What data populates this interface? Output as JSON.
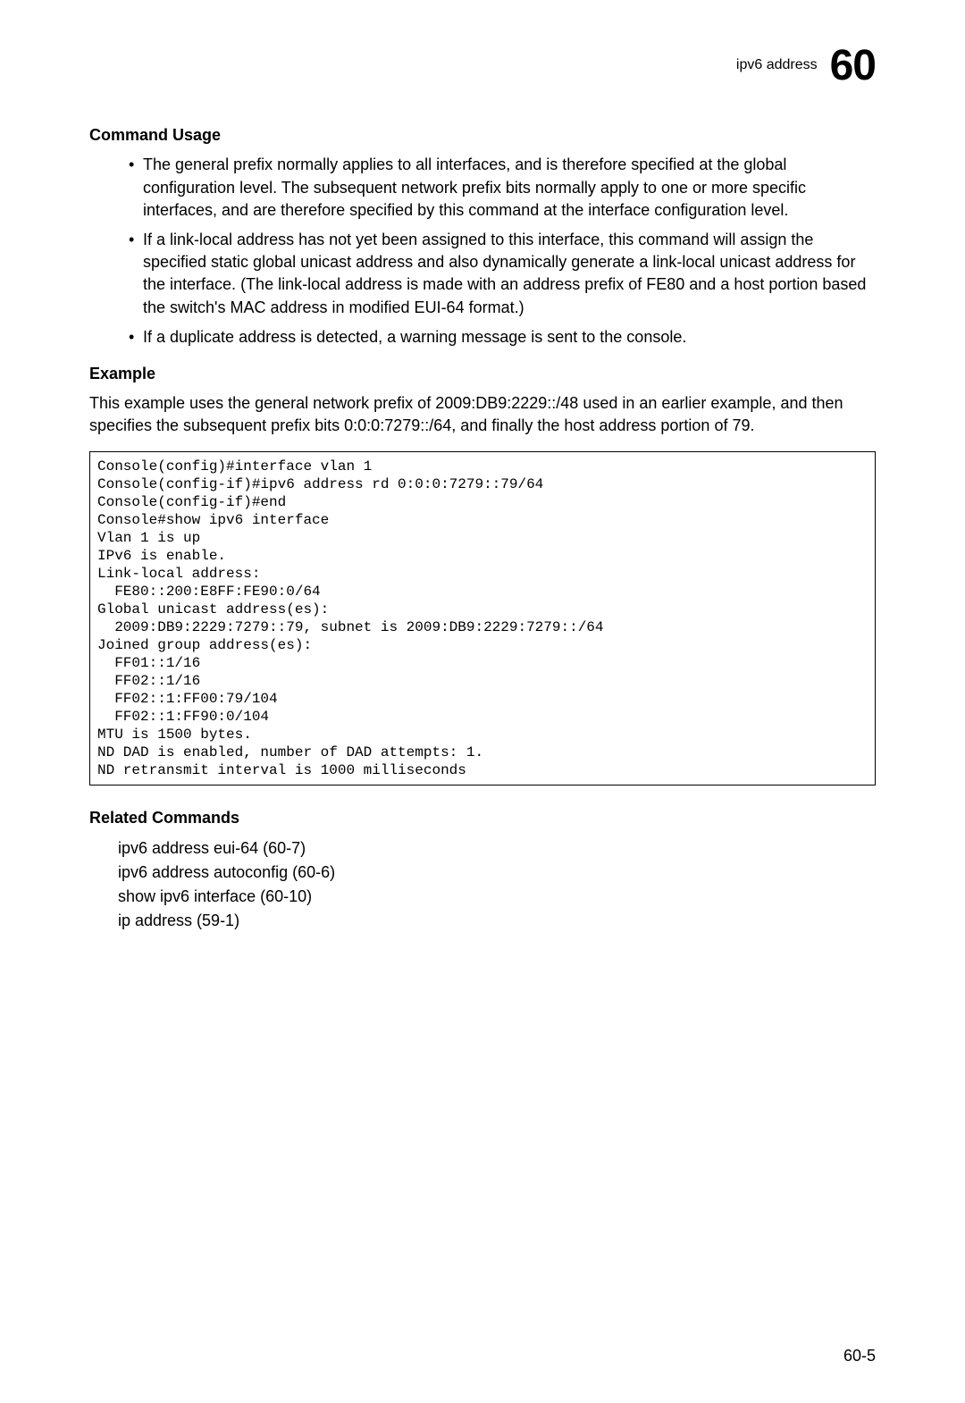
{
  "header": {
    "label": "ipv6 address",
    "chapter": "60"
  },
  "sections": {
    "command_usage": {
      "heading": "Command Usage",
      "bullets": [
        "The general prefix normally applies to all interfaces, and is therefore specified at the global configuration level. The subsequent network prefix bits normally apply to one or more specific interfaces, and are therefore specified by this command at the interface configuration level.",
        "If a link-local address has not yet been assigned to this interface, this command will assign the specified static global unicast address and also dynamically generate a link-local unicast address for the interface. (The link-local address is made with an address prefix of FE80 and a host portion based the switch's MAC address in modified EUI-64 format.)",
        "If a duplicate address is detected, a warning message is sent to the console."
      ]
    },
    "example": {
      "heading": "Example",
      "intro": "This example uses the general network prefix of 2009:DB9:2229::/48 used in an earlier example, and then specifies the subsequent prefix bits 0:0:0:7279::/64, and finally the host address portion of 79.",
      "code": "Console(config)#interface vlan 1\nConsole(config-if)#ipv6 address rd 0:0:0:7279::79/64\nConsole(config-if)#end\nConsole#show ipv6 interface\nVlan 1 is up\nIPv6 is enable.\nLink-local address:\n  FE80::200:E8FF:FE90:0/64\nGlobal unicast address(es):\n  2009:DB9:2229:7279::79, subnet is 2009:DB9:2229:7279::/64\nJoined group address(es):\n  FF01::1/16\n  FF02::1/16\n  FF02::1:FF00:79/104\n  FF02::1:FF90:0/104\nMTU is 1500 bytes.\nND DAD is enabled, number of DAD attempts: 1.\nND retransmit interval is 1000 milliseconds"
    },
    "related": {
      "heading": "Related Commands",
      "items": [
        "ipv6 address eui-64 (60-7)",
        "ipv6 address autoconfig (60-6)",
        "show ipv6 interface (60-10)",
        "ip address (59-1)"
      ]
    }
  },
  "page_number": "60-5"
}
